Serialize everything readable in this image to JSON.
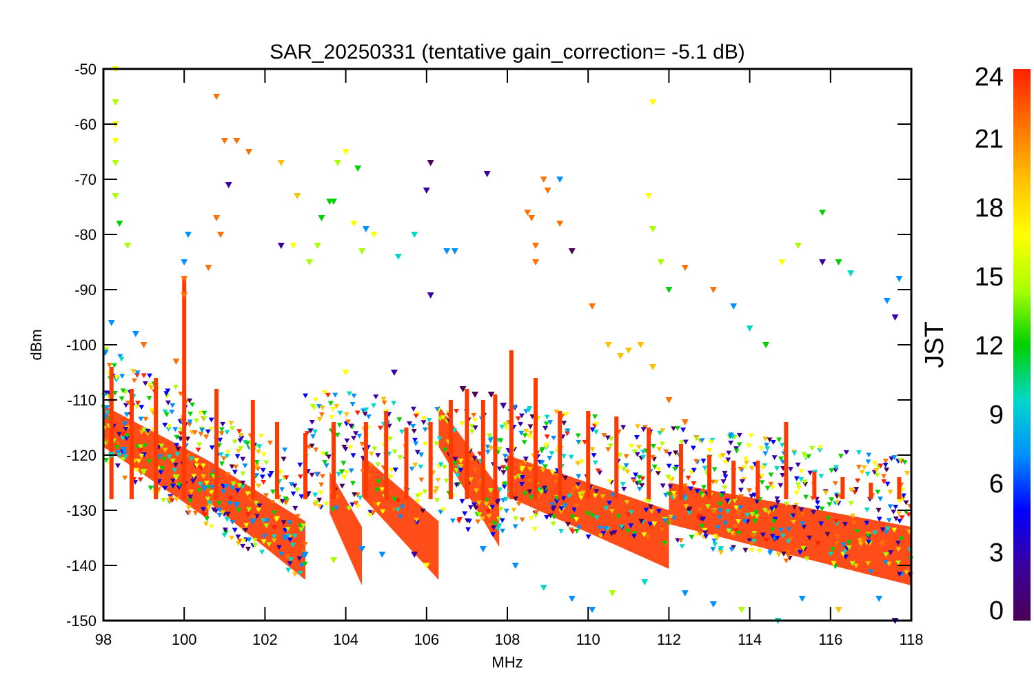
{
  "chart_data": {
    "type": "scatter",
    "title": "SAR_20250331 (tentative gain_correction= -5.1 dB)",
    "xlabel": "MHz",
    "ylabel": "dBm",
    "xlim": [
      98,
      118
    ],
    "ylim": [
      -150,
      -50
    ],
    "x_ticks": [
      98,
      100,
      102,
      104,
      106,
      108,
      110,
      112,
      114,
      116,
      118
    ],
    "x_tick_labels": [
      "98",
      "100",
      "102",
      "104",
      "106",
      "108",
      "110",
      "112",
      "114",
      "116",
      "118"
    ],
    "y_ticks": [
      -50,
      -60,
      -70,
      -80,
      -90,
      -100,
      -110,
      -120,
      -130,
      -140,
      -150
    ],
    "y_tick_labels": [
      "-50",
      "-60",
      "-70",
      "-80",
      "-90",
      "-100",
      "-110",
      "-120",
      "-130",
      "-140",
      "-150"
    ],
    "grid": false,
    "colorbar": {
      "label": "JST",
      "range": [
        0,
        24
      ],
      "ticks": [
        0,
        3,
        6,
        9,
        12,
        15,
        18,
        21,
        24
      ],
      "tick_labels": [
        "0",
        "3",
        "6",
        "9",
        "12",
        "15",
        "18",
        "21",
        "24"
      ],
      "colormap": "rainbow",
      "colors": [
        "#4b0055",
        "#3a00a0",
        "#0000ff",
        "#0090ff",
        "#00d8c8",
        "#00d000",
        "#aaff00",
        "#ffff00",
        "#ffc000",
        "#ff7000",
        "#ff2000"
      ]
    },
    "series": [
      {
        "points": [
          [
            98.3,
            -50,
            16
          ],
          [
            98.3,
            -56,
            14
          ],
          [
            98.3,
            -60,
            16
          ],
          [
            98.3,
            -63,
            16
          ],
          [
            98.3,
            -67,
            14
          ],
          [
            98.3,
            -73,
            14
          ],
          [
            98.4,
            -78,
            12
          ],
          [
            98.6,
            -82,
            14
          ],
          [
            100.0,
            -88,
            22
          ],
          [
            100.0,
            -91,
            22
          ],
          [
            100.1,
            -80,
            6
          ],
          [
            100.0,
            -85,
            6
          ],
          [
            100.8,
            -55,
            22
          ],
          [
            100.8,
            -77,
            22
          ],
          [
            100.9,
            -80,
            22
          ],
          [
            100.6,
            -86,
            22
          ],
          [
            101.0,
            -63,
            22
          ],
          [
            101.3,
            -63,
            22
          ],
          [
            101.1,
            -71,
            3
          ],
          [
            101.6,
            -65,
            22
          ],
          [
            102.4,
            -67,
            20
          ],
          [
            102.8,
            -73,
            19
          ],
          [
            102.7,
            -82,
            16
          ],
          [
            102.4,
            -82,
            3
          ],
          [
            103.1,
            -85,
            15
          ],
          [
            103.3,
            -82,
            14
          ],
          [
            103.4,
            -77,
            12
          ],
          [
            103.6,
            -74,
            12
          ],
          [
            103.7,
            -74,
            12
          ],
          [
            103.8,
            -67,
            14
          ],
          [
            104.0,
            -65,
            16
          ],
          [
            104.3,
            -68,
            12
          ],
          [
            104.2,
            -78,
            16
          ],
          [
            104.5,
            -79,
            8
          ],
          [
            104.4,
            -83,
            14
          ],
          [
            104.7,
            -80,
            16
          ],
          [
            105.3,
            -84,
            9
          ],
          [
            105.7,
            -80,
            9
          ],
          [
            106.0,
            -72,
            3
          ],
          [
            106.1,
            -91,
            3
          ],
          [
            106.1,
            -67,
            1
          ],
          [
            106.5,
            -83,
            7
          ],
          [
            106.7,
            -83,
            6
          ],
          [
            107.5,
            -69,
            3
          ],
          [
            108.5,
            -76,
            22
          ],
          [
            108.6,
            -77,
            22
          ],
          [
            108.7,
            -82,
            22
          ],
          [
            108.7,
            -85,
            22
          ],
          [
            108.9,
            -70,
            22
          ],
          [
            109.0,
            -72,
            22
          ],
          [
            109.3,
            -70,
            6
          ],
          [
            109.3,
            -78,
            22
          ],
          [
            109.6,
            -83,
            1
          ],
          [
            110.1,
            -93,
            22
          ],
          [
            111.5,
            -73,
            16
          ],
          [
            111.6,
            -56,
            16
          ],
          [
            111.6,
            -79,
            14
          ],
          [
            111.8,
            -85,
            14
          ],
          [
            112.0,
            -90,
            12
          ],
          [
            112.4,
            -86,
            22
          ],
          [
            113.1,
            -90,
            22
          ],
          [
            113.6,
            -93,
            7
          ],
          [
            114.0,
            -97,
            9
          ],
          [
            114.4,
            -100,
            11
          ],
          [
            114.8,
            -85,
            16
          ],
          [
            115.2,
            -82,
            15
          ],
          [
            115.8,
            -76,
            11
          ],
          [
            115.8,
            -85,
            3
          ],
          [
            116.2,
            -85,
            11
          ],
          [
            116.5,
            -87,
            9
          ],
          [
            117.4,
            -92,
            6
          ],
          [
            117.6,
            -95,
            3
          ],
          [
            117.7,
            -88,
            6
          ],
          [
            110.5,
            -100,
            18
          ],
          [
            110.8,
            -102,
            18
          ],
          [
            111.0,
            -101,
            18
          ],
          [
            111.3,
            -100,
            19
          ],
          [
            111.6,
            -104,
            18
          ],
          [
            112.0,
            -110,
            22
          ],
          [
            112.4,
            -114,
            22
          ],
          [
            98.2,
            -120,
            9
          ],
          [
            98.5,
            -119,
            6
          ],
          [
            99.0,
            -123,
            14
          ],
          [
            99.8,
            -124,
            14
          ],
          [
            100.5,
            -126,
            6
          ],
          [
            101.3,
            -129,
            6
          ],
          [
            101.7,
            -132,
            8
          ],
          [
            102.5,
            -135,
            6
          ],
          [
            103.0,
            -138,
            8
          ],
          [
            103.7,
            -139,
            14
          ],
          [
            104.4,
            -137,
            6
          ],
          [
            104.9,
            -138,
            6
          ],
          [
            105.7,
            -138,
            3
          ],
          [
            106.0,
            -140,
            16
          ],
          [
            107.4,
            -137,
            6
          ],
          [
            108.2,
            -140,
            6
          ],
          [
            108.9,
            -144,
            9
          ],
          [
            109.6,
            -146,
            6
          ],
          [
            110.1,
            -148,
            8
          ],
          [
            110.6,
            -145,
            14
          ],
          [
            111.4,
            -143,
            9
          ],
          [
            112.4,
            -145,
            6
          ],
          [
            113.1,
            -147,
            8
          ],
          [
            113.8,
            -148,
            14
          ],
          [
            114.7,
            -150,
            9
          ],
          [
            115.3,
            -146,
            8
          ],
          [
            116.2,
            -148,
            20
          ],
          [
            117.2,
            -146,
            6
          ],
          [
            117.6,
            -150,
            3
          ],
          [
            107.6,
            -109,
            1
          ],
          [
            107.2,
            -109,
            1
          ],
          [
            106.9,
            -108,
            1
          ],
          [
            107.9,
            -111,
            3
          ],
          [
            105.2,
            -105,
            3
          ],
          [
            104.0,
            -105,
            16
          ],
          [
            99.8,
            -103,
            22
          ],
          [
            99.0,
            -100,
            22
          ],
          [
            98.8,
            -98,
            6
          ],
          [
            98.2,
            -96,
            6
          ]
        ]
      }
    ],
    "bands": [
      {
        "x": [
          98.0,
          100.6
        ],
        "y_top": [
          -111,
          -121
        ]
      },
      {
        "x": [
          100.6,
          103.0
        ],
        "y_top": [
          -121,
          -132
        ]
      },
      {
        "x": [
          103.6,
          104.4
        ],
        "y_top": [
          -123,
          -133
        ]
      },
      {
        "x": [
          104.4,
          106.3
        ],
        "y_top": [
          -120,
          -132
        ]
      },
      {
        "x": [
          106.3,
          107.8
        ],
        "y_top": [
          -111,
          -126
        ]
      },
      {
        "x": [
          108.0,
          112.0
        ],
        "y_top": [
          -120,
          -130
        ]
      },
      {
        "x": [
          112.0,
          118.0
        ],
        "y_top": [
          -125,
          -133
        ]
      }
    ]
  }
}
